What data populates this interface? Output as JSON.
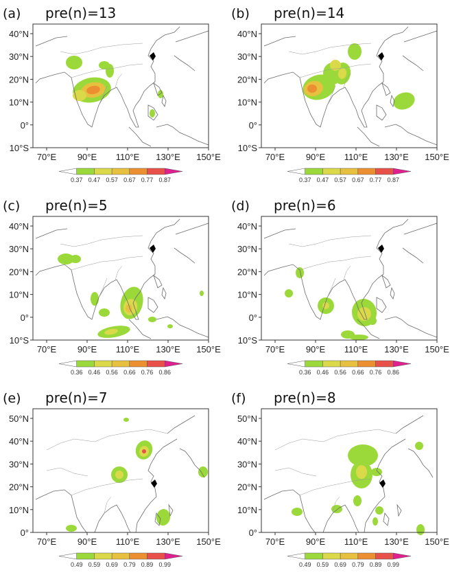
{
  "figure": {
    "colorbar_colors": [
      "#ffffff",
      "#9bd93a",
      "#d9d94a",
      "#e8c040",
      "#ec8f30",
      "#e8504a",
      "#e0208f"
    ],
    "marker_color": "#000000"
  },
  "panels": [
    {
      "letter": "(a)",
      "title": "pre(n)=13",
      "lat_labels": [
        "40°N",
        "30°N",
        "20°N",
        "10°N",
        "0°",
        "10°S"
      ],
      "lon_labels": [
        "70°E",
        "90°E",
        "110°E",
        "130°E",
        "150°E"
      ],
      "colorbar_ticks": [
        "0.37",
        "0.47",
        "0.57",
        "0.67",
        "0.77",
        "0.87"
      ]
    },
    {
      "letter": "(b)",
      "title": "pre(n)=14",
      "lat_labels": [
        "40°N",
        "30°N",
        "20°N",
        "10°N",
        "0°",
        "10°S"
      ],
      "lon_labels": [
        "70°E",
        "90°E",
        "110°E",
        "130°E",
        "150°E"
      ],
      "colorbar_ticks": [
        "0.37",
        "0.47",
        "0.57",
        "0.67",
        "0.77",
        "0.87"
      ]
    },
    {
      "letter": "(c)",
      "title": "pre(n)=5",
      "lat_labels": [
        "40°N",
        "30°N",
        "20°N",
        "10°N",
        "0°",
        "10°S"
      ],
      "lon_labels": [
        "70°E",
        "90°E",
        "110°E",
        "130°E",
        "150°E"
      ],
      "colorbar_ticks": [
        "0.36",
        "0.46",
        "0.56",
        "0.66",
        "0.76",
        "0.86"
      ]
    },
    {
      "letter": "(d)",
      "title": "pre(n)=6",
      "lat_labels": [
        "40°N",
        "30°N",
        "20°N",
        "10°N",
        "0°",
        "10°S"
      ],
      "lon_labels": [
        "70°E",
        "90°E",
        "110°E",
        "130°E",
        "150°E"
      ],
      "colorbar_ticks": [
        "0.36",
        "0.46",
        "0.56",
        "0.66",
        "0.76",
        "0.86"
      ]
    },
    {
      "letter": "(e)",
      "title": "pre(n)=7",
      "lat_labels": [
        "50°N",
        "40°N",
        "30°N",
        "20°N",
        "10°N",
        "0°"
      ],
      "lon_labels": [
        "70°E",
        "90°E",
        "110°E",
        "130°E",
        "150°E"
      ],
      "colorbar_ticks": [
        "0.49",
        "0.59",
        "0.69",
        "0.79",
        "0.89",
        "0.99"
      ]
    },
    {
      "letter": "(f)",
      "title": "pre(n)=8",
      "lat_labels": [
        "50°N",
        "40°N",
        "30°N",
        "20°N",
        "10°N",
        "0°"
      ],
      "lon_labels": [
        "70°E",
        "90°E",
        "110°E",
        "130°E",
        "150°E"
      ],
      "colorbar_ticks": [
        "0.49",
        "0.59",
        "0.69",
        "0.79",
        "0.89",
        "0.99"
      ]
    }
  ]
}
